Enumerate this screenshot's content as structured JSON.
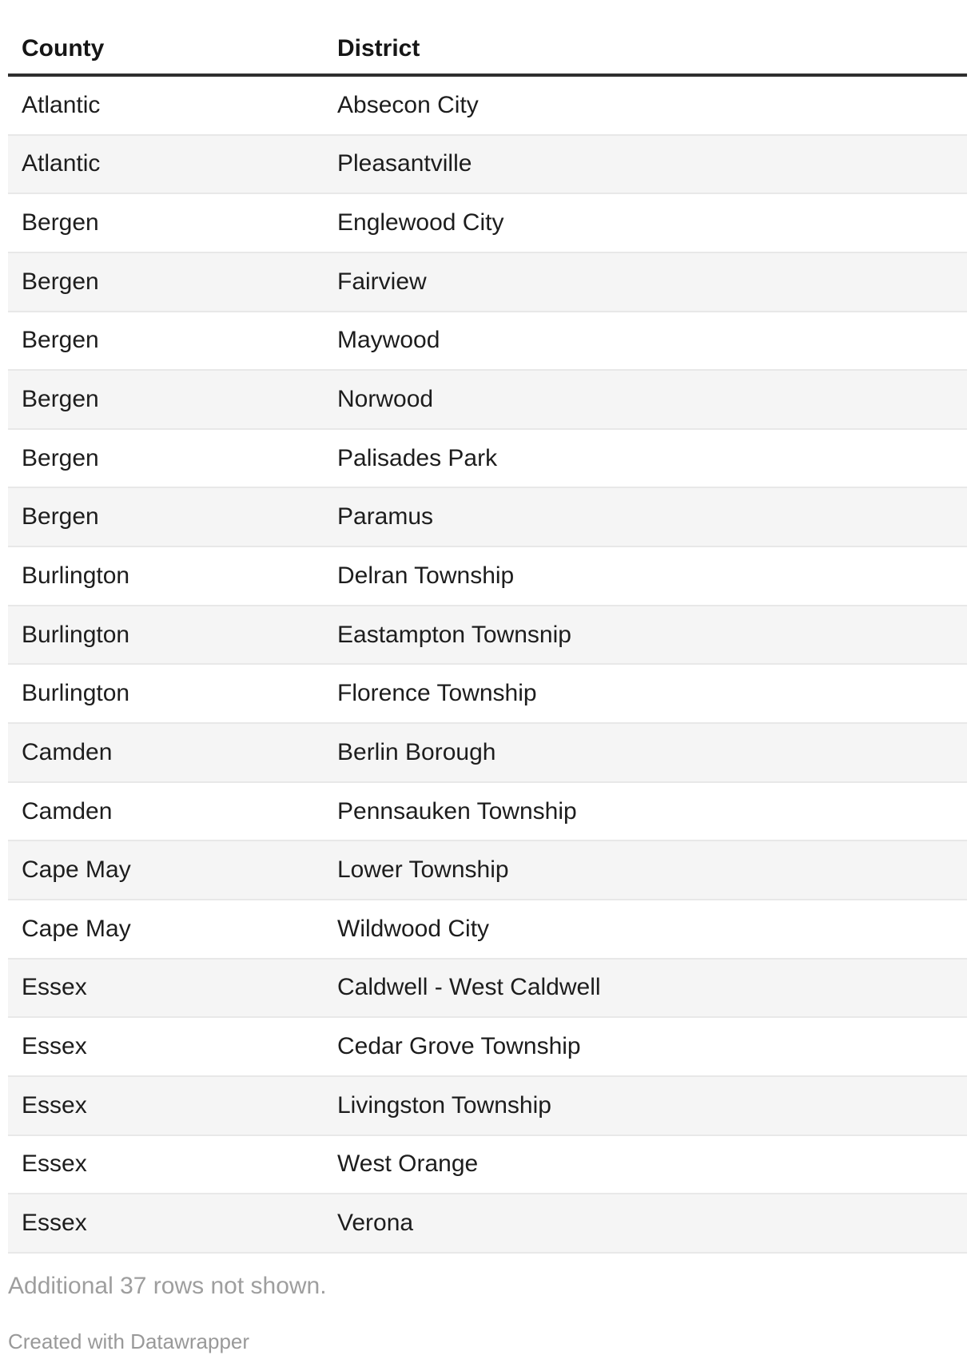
{
  "chart_data": {
    "type": "table",
    "columns": [
      "County",
      "District"
    ],
    "rows": [
      [
        "Atlantic",
        "Absecon City"
      ],
      [
        "Atlantic",
        "Pleasantville"
      ],
      [
        "Bergen",
        "Englewood City"
      ],
      [
        "Bergen",
        "Fairview"
      ],
      [
        "Bergen",
        "Maywood"
      ],
      [
        "Bergen",
        "Norwood"
      ],
      [
        "Bergen",
        "Palisades Park"
      ],
      [
        "Bergen",
        "Paramus"
      ],
      [
        "Burlington",
        "Delran Township"
      ],
      [
        "Burlington",
        "Eastampton Townsnip"
      ],
      [
        "Burlington",
        "Florence Township"
      ],
      [
        "Camden",
        "Berlin Borough"
      ],
      [
        "Camden",
        "Pennsauken Township"
      ],
      [
        "Cape May",
        "Lower Township"
      ],
      [
        "Cape May",
        "Wildwood City"
      ],
      [
        "Essex",
        "Caldwell - West Caldwell"
      ],
      [
        "Essex",
        "Cedar Grove Township"
      ],
      [
        "Essex",
        "Livingston Township"
      ],
      [
        "Essex",
        "West Orange"
      ],
      [
        "Essex",
        "Verona"
      ]
    ],
    "notes": "Additional 37 rows not shown.",
    "credit": "Created with Datawrapper",
    "layout_hints": {
      "striped_rows": true,
      "stripe_starts_on_second_row": true,
      "grid": "horizontal-row-separators"
    }
  },
  "colors": {
    "stripe": "#f5f5f5",
    "row_border": "#e8e8e8",
    "header_rule": "#2e2e2e",
    "text": "#1d1d1d",
    "header_text": "#161616",
    "muted_text": "#9e9e9e",
    "credit_text": "#999999"
  }
}
